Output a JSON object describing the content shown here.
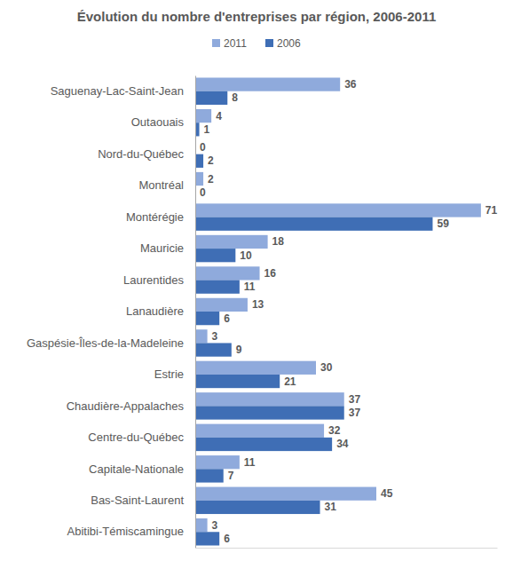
{
  "chart_data": {
    "type": "bar",
    "title": "Évolution du nombre d'entreprises par région, 2006-2011",
    "orientation": "horizontal",
    "categories": [
      "Saguenay-Lac-Saint-Jean",
      "Outaouais",
      "Nord-du-Québec",
      "Montréal",
      "Montérégie",
      "Mauricie",
      "Laurentides",
      "Lanaudière",
      "Gaspésie-Îles-de-la-Madeleine",
      "Estrie",
      "Chaudière-Appalaches",
      "Centre-du-Québec",
      "Capitale-Nationale",
      "Bas-Saint-Laurent",
      "Abitibi-Témiscamingue"
    ],
    "series": [
      {
        "name": "2011",
        "color": "#8faadc",
        "values": [
          36,
          4,
          0,
          2,
          71,
          18,
          16,
          13,
          3,
          30,
          37,
          32,
          11,
          45,
          3
        ]
      },
      {
        "name": "2006",
        "color": "#3f6eb5",
        "values": [
          8,
          1,
          2,
          0,
          59,
          10,
          11,
          6,
          9,
          21,
          37,
          34,
          7,
          31,
          6
        ]
      }
    ],
    "xlim": [
      0,
      75
    ],
    "data_labels": true,
    "tick_labels": "y",
    "grid": false,
    "legend": "top"
  }
}
